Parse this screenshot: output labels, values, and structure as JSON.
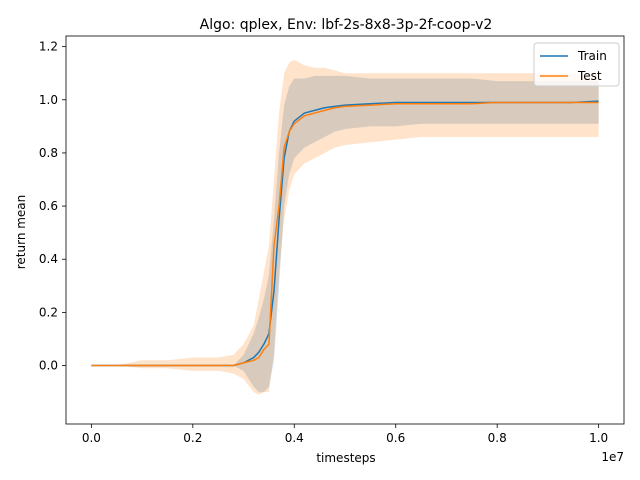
{
  "chart_data": {
    "type": "line",
    "title": "Algo: qplex, Env: lbf-2s-8x8-3p-2f-coop-v2",
    "xlabel": "timesteps",
    "ylabel": "return mean",
    "x_offset_label": "1e7",
    "x_scale": 10000000,
    "xlim": [
      -5000000,
      105000000
    ],
    "ylim": [
      -0.22,
      1.24
    ],
    "x_ticks": [
      0,
      20000000,
      40000000,
      60000000,
      80000000,
      100000000
    ],
    "x_tick_labels": [
      "0.0",
      "0.2",
      "0.4",
      "0.6",
      "0.8",
      "1.0"
    ],
    "y_ticks": [
      0.0,
      0.2,
      0.4,
      0.6,
      0.8,
      1.0,
      1.2
    ],
    "y_tick_labels": [
      "0.0",
      "0.2",
      "0.4",
      "0.6",
      "0.8",
      "1.0",
      "1.2"
    ],
    "legend_position": "top-right",
    "grid": false,
    "series": [
      {
        "name": "Train",
        "color": "#1f77b4",
        "x": [
          0,
          5000000,
          10000000,
          15000000,
          20000000,
          25000000,
          28000000,
          30000000,
          32000000,
          33000000,
          34000000,
          35000000,
          36000000,
          37000000,
          38000000,
          39000000,
          40000000,
          42000000,
          44000000,
          46000000,
          48000000,
          50000000,
          55000000,
          60000000,
          65000000,
          70000000,
          75000000,
          80000000,
          85000000,
          90000000,
          95000000,
          100000000
        ],
        "y": [
          0.0,
          0.0,
          0.0,
          0.0,
          0.0,
          0.0,
          0.0,
          0.01,
          0.03,
          0.05,
          0.08,
          0.12,
          0.28,
          0.55,
          0.78,
          0.88,
          0.92,
          0.95,
          0.96,
          0.97,
          0.975,
          0.98,
          0.985,
          0.99,
          0.99,
          0.99,
          0.99,
          0.99,
          0.99,
          0.99,
          0.99,
          0.995
        ],
        "band_lower": [
          0.0,
          0.0,
          0.0,
          0.0,
          0.0,
          0.0,
          0.0,
          -0.02,
          -0.08,
          -0.1,
          -0.1,
          -0.08,
          0.02,
          0.3,
          0.6,
          0.72,
          0.78,
          0.82,
          0.84,
          0.86,
          0.88,
          0.89,
          0.9,
          0.9,
          0.91,
          0.91,
          0.91,
          0.91,
          0.91,
          0.91,
          0.91,
          0.91
        ],
        "band_upper": [
          0.0,
          0.0,
          0.0,
          0.0,
          0.0,
          0.0,
          0.0,
          0.04,
          0.12,
          0.18,
          0.25,
          0.34,
          0.55,
          0.8,
          0.98,
          1.05,
          1.08,
          1.08,
          1.09,
          1.09,
          1.09,
          1.09,
          1.08,
          1.08,
          1.08,
          1.08,
          1.08,
          1.07,
          1.07,
          1.07,
          1.07,
          1.07
        ]
      },
      {
        "name": "Test",
        "color": "#ff7f0e",
        "x": [
          0,
          5000000,
          10000000,
          15000000,
          20000000,
          25000000,
          28000000,
          30000000,
          32000000,
          33000000,
          34000000,
          35000000,
          36000000,
          37000000,
          38000000,
          39000000,
          40000000,
          42000000,
          44000000,
          46000000,
          48000000,
          50000000,
          55000000,
          60000000,
          65000000,
          70000000,
          75000000,
          80000000,
          85000000,
          90000000,
          95000000,
          100000000
        ],
        "y": [
          0.0,
          0.0,
          0.0,
          0.0,
          0.0,
          0.0,
          0.0,
          0.01,
          0.02,
          0.03,
          0.06,
          0.08,
          0.45,
          0.6,
          0.82,
          0.88,
          0.91,
          0.94,
          0.95,
          0.96,
          0.97,
          0.975,
          0.98,
          0.985,
          0.985,
          0.985,
          0.985,
          0.99,
          0.99,
          0.99,
          0.99,
          0.99
        ],
        "band_lower": [
          0.0,
          0.0,
          -0.01,
          -0.01,
          -0.02,
          -0.02,
          -0.03,
          -0.05,
          -0.1,
          -0.11,
          -0.1,
          -0.1,
          0.05,
          0.35,
          0.55,
          0.66,
          0.72,
          0.76,
          0.78,
          0.8,
          0.82,
          0.83,
          0.84,
          0.85,
          0.86,
          0.86,
          0.86,
          0.86,
          0.86,
          0.86,
          0.86,
          0.86
        ],
        "band_upper": [
          0.0,
          0.0,
          0.02,
          0.02,
          0.03,
          0.03,
          0.04,
          0.08,
          0.15,
          0.25,
          0.35,
          0.45,
          0.7,
          0.95,
          1.1,
          1.14,
          1.15,
          1.13,
          1.12,
          1.12,
          1.11,
          1.1,
          1.1,
          1.1,
          1.1,
          1.1,
          1.1,
          1.1,
          1.1,
          1.1,
          1.1,
          1.1
        ]
      }
    ]
  }
}
